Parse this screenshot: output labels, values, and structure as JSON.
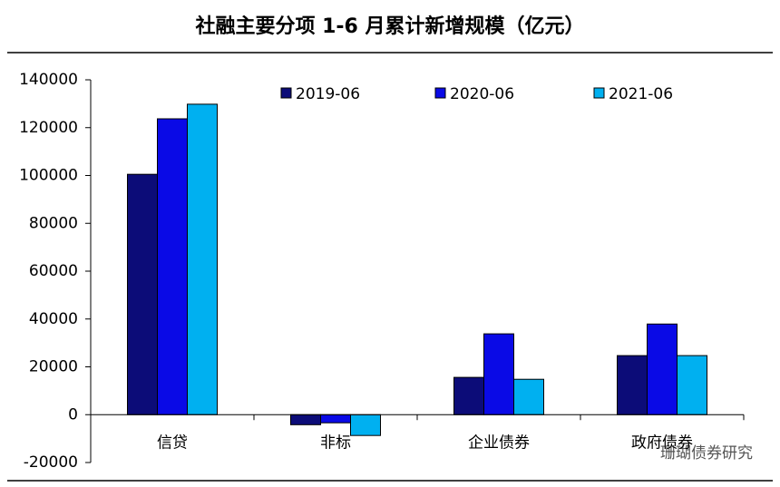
{
  "chart_data": {
    "type": "bar",
    "title": "社融主要分项 1-6 月累计新增规模（亿元）",
    "categories": [
      "信贷",
      "非标",
      "企业债券",
      "政府债券"
    ],
    "series": [
      {
        "name": "2019-06",
        "color": "#0c0c78",
        "values": [
          100500,
          -4200,
          15600,
          24700
        ]
      },
      {
        "name": "2020-06",
        "color": "#0a0ae6",
        "values": [
          123700,
          -3400,
          33800,
          37900
        ]
      },
      {
        "name": "2021-06",
        "color": "#00b0f0",
        "values": [
          129800,
          -8700,
          14800,
          24700
        ]
      }
    ],
    "ylim": [
      -20000,
      140000
    ],
    "yticks": [
      -20000,
      0,
      20000,
      40000,
      60000,
      80000,
      100000,
      120000,
      140000
    ],
    "legend": "top",
    "watermark": "珊瑚债券研究"
  }
}
